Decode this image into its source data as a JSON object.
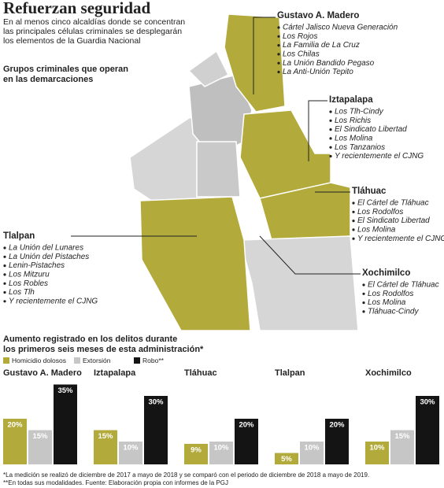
{
  "header": {
    "title": "Refuerzan seguridad",
    "subtitle": [
      "En al menos cinco alcaldías donde se concentran",
      "las principales células criminales se desplegarán",
      "los elementos de la Guardia Nacional"
    ]
  },
  "map": {
    "heading": [
      "Grupos criminales que operan",
      "en las demarcaciones"
    ],
    "districts": [
      {
        "name": "Gustavo A. Madero",
        "items": [
          "Cártel Jalisco Nueva Generación",
          "Los Rojos",
          "La Familia de La Cruz",
          "Los Chilas",
          "La Unión Bandido Pegaso",
          "La Anti-Unión Tepito"
        ]
      },
      {
        "name": "Iztapalapa",
        "items": [
          "Los Tlh-Cindy",
          "Los Richis",
          "El Sindicato Libertad",
          "Los Molina",
          "Los Tanzanios",
          "Y recientemente el CJNG"
        ]
      },
      {
        "name": "Tláhuac",
        "items": [
          "El Cártel de Tláhuac",
          "Los Rodolfos",
          "El Sindicato Libertad",
          "Los Molina",
          "Y recientemente el CJNG"
        ]
      },
      {
        "name": "Tlalpan",
        "items": [
          "La Unión del Lunares",
          "La Unión del Pistaches",
          "Lenin-Pistaches",
          "Los Mitzuru",
          "Los Robles",
          "Los Tlh",
          "Y recientemente el CJNG"
        ]
      },
      {
        "name": "Xochimilco",
        "items": [
          "El Cártel de Tláhuac",
          "Los Rodolfos",
          "Los Molina",
          "Tláhuac-Cindy"
        ]
      }
    ]
  },
  "charts_heading": [
    "Aumento registrado en los delitos durante",
    "los primeros seis meses de esta administración*"
  ],
  "legend": [
    {
      "name": "Homicidio dolosos",
      "color": "#b3aa3c"
    },
    {
      "name": "Extorsión",
      "color": "#c6c6c6"
    },
    {
      "name": "Robo**",
      "color": "#141414"
    }
  ],
  "chart_data": [
    {
      "type": "bar",
      "title": "Gustavo A. Madero",
      "values": [
        20,
        15,
        35
      ],
      "value_labels": [
        "20%",
        "15%",
        "35%"
      ]
    },
    {
      "type": "bar",
      "title": "Iztapalapa",
      "values": [
        15,
        10,
        30
      ],
      "value_labels": [
        "15%",
        "10%",
        "30%"
      ]
    },
    {
      "type": "bar",
      "title": "Tláhuac",
      "values": [
        9,
        10,
        20
      ],
      "value_labels": [
        "9%",
        "10%",
        "20%"
      ]
    },
    {
      "type": "bar",
      "title": "Tlalpan",
      "values": [
        5,
        10,
        20
      ],
      "value_labels": [
        "5%",
        "10%",
        "20%"
      ]
    },
    {
      "type": "bar",
      "title": "Xochimilco",
      "values": [
        10,
        15,
        30
      ],
      "value_labels": [
        "10%",
        "15%",
        "30%"
      ]
    }
  ],
  "footnotes": [
    "*La medición se realizó de diciembre de 2017 a mayo de 2018 y se comparó con el periodo de diciembre de 2018 a mayo de 2019.",
    "**En todas sus modalidades. Fuente: Elaboración propia con informes de la PGJ"
  ]
}
